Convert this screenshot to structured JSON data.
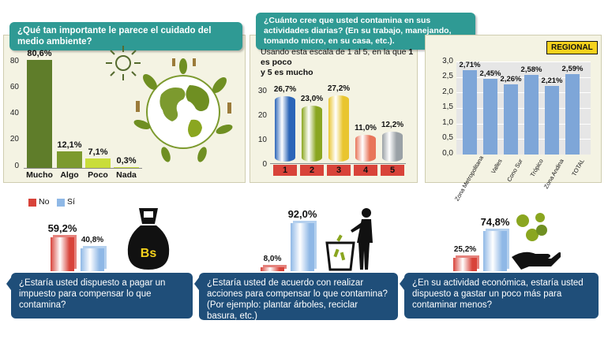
{
  "q1": {
    "title": "¿Qué tan importante le parece el cuidado del medio ambiente?"
  },
  "q2": {
    "title": "¿Cuánto cree que usted contamina en sus actividades diarias? (En su trabajo, manejando, tomando micro, en su casa, etc.).",
    "scale_note_a": "Usando esta escala de 1 al 5, en la que ",
    "scale_note_b": "1 es poco",
    "scale_note_c": "y 5 es mucho"
  },
  "regional_badge": "REGIONAL",
  "legend": {
    "no": "No",
    "si": "Sí"
  },
  "bottom": {
    "q1": "¿Estaría usted dispuesto a pagar un impuesto para compensar  lo que contamina?",
    "q2": "¿Estaría usted de acuerdo con realizar acciones para compensar lo que contamina? (Por ejemplo: plantar árboles, reciclar basura, etc.)",
    "q3": "¿En su actividad económica, estaría usted dispuesto a gastar un poco más para contaminar menos?",
    "bs": "Bs"
  },
  "colors": {
    "teal": "#2f9a94",
    "navy": "#1f4e79",
    "panel": "#f4f3e3",
    "green_dark": "#5f7d2a",
    "green_mid": "#7c9a2e",
    "yellow_green": "#c9dd3a",
    "scale1": "#2c66b8",
    "scale2": "#8aa620",
    "scale3": "#e9c52f",
    "scale4": "#e8755a",
    "scale5": "#9aa1a6",
    "regional_bar": "#7ea6d8",
    "no": "#d8433a",
    "si": "#8fb8e6",
    "badge": "#f5d21c"
  },
  "chart_data": [
    {
      "type": "bar",
      "title": "¿Qué tan importante le parece el cuidado del medio ambiente?",
      "categories": [
        "Mucho",
        "Algo",
        "Poco",
        "Nada"
      ],
      "values": [
        80.6,
        12.1,
        7.1,
        0.3
      ],
      "value_labels": [
        "80,6%",
        "12,1%",
        "7,1%",
        "0,3%"
      ],
      "ylim": [
        0,
        90
      ],
      "yticks": [
        "0",
        "20",
        "40",
        "60",
        "80"
      ]
    },
    {
      "type": "bar",
      "title": "¿Cuánto cree que usted contamina en sus actividades diarias? (En su trabajo, manejando, tomando micro, en su casa, etc.).",
      "categories": [
        "1",
        "2",
        "3",
        "4",
        "5"
      ],
      "values": [
        26.7,
        23.0,
        27.2,
        11.0,
        12.2
      ],
      "value_labels": [
        "26,7%",
        "23,0%",
        "27,2%",
        "11,0%",
        "12,2%"
      ],
      "ylim": [
        0,
        30
      ],
      "yticks": [
        "0",
        "10",
        "20",
        "30"
      ]
    },
    {
      "type": "bar",
      "title": "REGIONAL",
      "categories": [
        "Zona Metropolitana",
        "Valles",
        "Cono Sur",
        "Trópico",
        "Zona Andina",
        "TOTAL"
      ],
      "values": [
        2.71,
        2.45,
        2.26,
        2.58,
        2.21,
        2.59
      ],
      "value_labels": [
        "2,71%",
        "2,45%",
        "2,26%",
        "2,58%",
        "2,21%",
        "2,59%"
      ],
      "ylim": [
        0,
        3.0
      ],
      "yticks": [
        "0,0",
        "0,5",
        "1,0",
        "1,5",
        "2,0",
        "2,5",
        "3,0"
      ]
    },
    {
      "type": "bar",
      "title": "¿Estaría usted dispuesto a pagar un impuesto para compensar  lo que contamina?",
      "series": [
        {
          "name": "No",
          "values": [
            59.2
          ]
        },
        {
          "name": "Sí",
          "values": [
            40.8
          ]
        }
      ],
      "value_labels": [
        "59,2%",
        "40,8%"
      ]
    },
    {
      "type": "bar",
      "title": "¿Estaría usted de acuerdo con realizar acciones para compensar lo que contamina? (Por ejemplo: plantar árboles, reciclar basura, etc.)",
      "series": [
        {
          "name": "No",
          "values": [
            8.0
          ]
        },
        {
          "name": "Sí",
          "values": [
            92.0
          ]
        }
      ],
      "value_labels": [
        "8,0%",
        "92,0%"
      ]
    },
    {
      "type": "bar",
      "title": "¿En su actividad económica, estaría usted dispuesto a gastar un poco más para contaminar menos?",
      "series": [
        {
          "name": "No",
          "values": [
            25.2
          ]
        },
        {
          "name": "Sí",
          "values": [
            74.8
          ]
        }
      ],
      "value_labels": [
        "25,2%",
        "74,8%"
      ]
    }
  ]
}
